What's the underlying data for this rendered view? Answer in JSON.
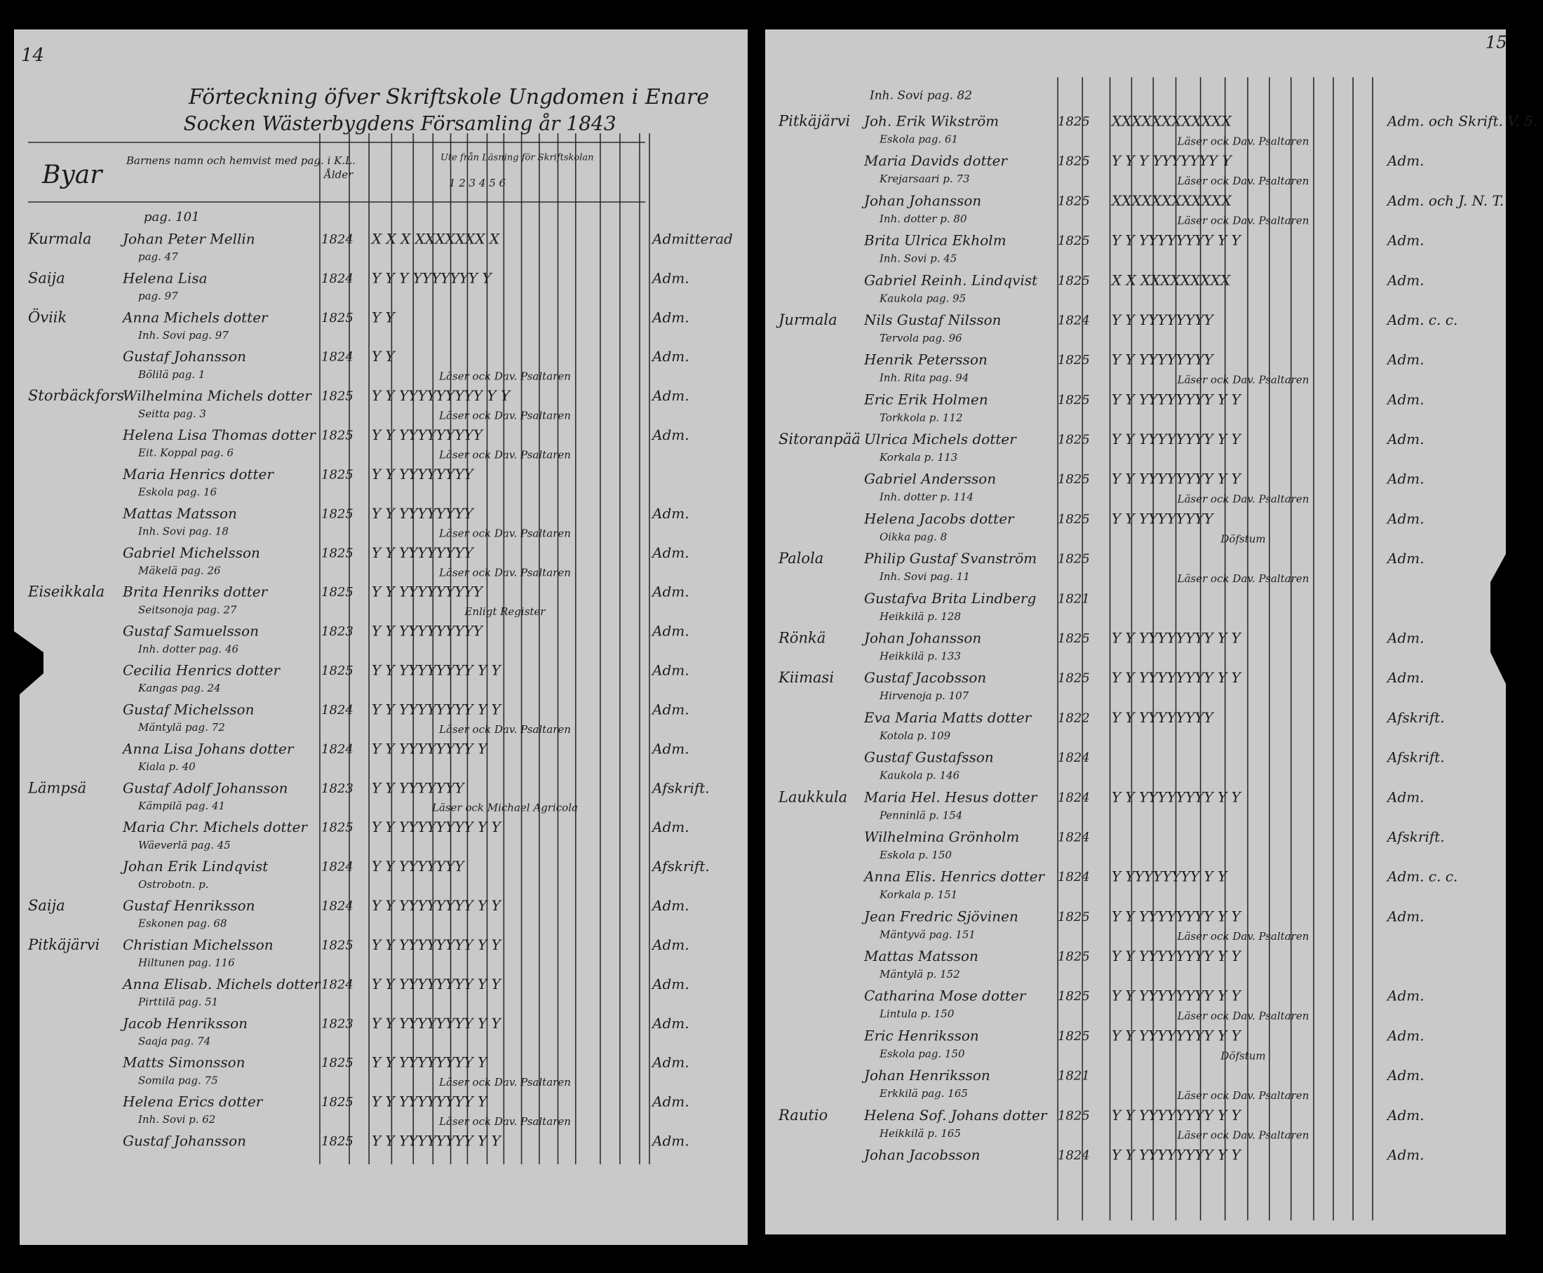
{
  "left_page": {
    "page_number": "14",
    "title": [
      "Förteckning öfver Skriftskole Ungdomen i Enare",
      "Socken Wästerbygdens Församling år 1843"
    ],
    "header": {
      "village": "Byar",
      "name": "Barnens namn och hemvist med pag. i K.L.",
      "age": "Ålder",
      "reading": "Ute från Läsning för Skriftskolan",
      "columns": "1 2 3 4 5 6"
    },
    "top_ref": "pag. 101",
    "rows": [
      {
        "village": "Kurmala",
        "name": "Johan Peter Mellin",
        "ref": "pag. 47",
        "year": "1824",
        "marks": "X X X XXXXXXX X",
        "status": "Admitterad"
      },
      {
        "village": "Saija",
        "name": "Helena Lisa",
        "ref": "pag. 97",
        "year": "1824",
        "marks": "Y Y Y YYYYYYY Y",
        "status": "Adm."
      },
      {
        "village": "Öviik",
        "name": "Anna Michels dotter",
        "ref": "Inh. Sovi pag. 97",
        "year": "1825",
        "marks": "Y Y",
        "status": "Adm."
      },
      {
        "village": "",
        "name": "Gustaf Johansson",
        "ref": "Bölilä pag. 1",
        "year": "1824",
        "marks": "Y Y",
        "status": "Adm.",
        "note": "Läser ock Dav. Psaltaren"
      },
      {
        "village": "Storbäckfors",
        "name": "Wilhelmina Michels dotter",
        "ref": "Seitta pag. 3",
        "year": "1825",
        "marks": "Y Y YYYYYYYYY Y Y",
        "status": "Adm.",
        "note": "Läser ock Dav. Psaltaren"
      },
      {
        "village": "",
        "name": "Helena Lisa Thomas dotter",
        "ref": "Eit. Koppal pag. 6",
        "year": "1825",
        "marks": "Y Y YYYYYYYYY",
        "status": "Adm.",
        "note": "Läser ock Dav. Psaltaren"
      },
      {
        "village": "",
        "name": "Maria Henrics dotter",
        "ref": "Eskola pag. 16",
        "year": "1825",
        "marks": "Y Y YYYYYYYY",
        "status": ""
      },
      {
        "village": "",
        "name": "Mattas Matsson",
        "ref": "Inh. Sovi pag. 18",
        "year": "1825",
        "marks": "Y Y YYYYYYYY",
        "status": "Adm.",
        "note": "Läser ock Dav. Psaltaren"
      },
      {
        "village": "",
        "name": "Gabriel Michelsson",
        "ref": "Mäkelä pag. 26",
        "year": "1825",
        "marks": "Y Y YYYYYYYY",
        "status": "Adm.",
        "note": "Läser ock Dav. Psaltaren"
      },
      {
        "village": "Eiseikkala",
        "name": "Brita Henriks dotter",
        "ref": "Seitsonoja pag. 27",
        "year": "1825",
        "marks": "Y Y YYYYYYYYY",
        "status": "Adm.",
        "note": "Enligt Register"
      },
      {
        "village": "",
        "name": "Gustaf Samuelsson",
        "ref": "Inh. dotter pag. 46",
        "year": "1823",
        "marks": "Y Y YYYYYYYYY",
        "status": "Adm."
      },
      {
        "village": "",
        "name": "Cecilia Henrics dotter",
        "ref": "Kangas pag. 24",
        "year": "1825",
        "marks": "Y Y YYYYYYYY Y Y",
        "status": "Adm."
      },
      {
        "village": "",
        "name": "Gustaf Michelsson",
        "ref": "Mäntylä pag. 72",
        "year": "1824",
        "marks": "Y Y YYYYYYYY Y Y",
        "status": "Adm.",
        "note": "Läser ock Dav. Psaltaren"
      },
      {
        "village": "",
        "name": "Anna Lisa Johans dotter",
        "ref": "Kiala p. 40",
        "year": "1824",
        "marks": "Y Y YYYYYYYY Y",
        "status": "Adm."
      },
      {
        "village": "Lämpsä",
        "name": "Gustaf Adolf Johansson",
        "ref": "Kämpilä pag. 41",
        "year": "1823",
        "marks": "Y Y YYYYYYY",
        "status": "Afskrift.",
        "note": "Läser ock Michael Agricola"
      },
      {
        "village": "",
        "name": "Maria Chr. Michels dotter",
        "ref": "Wäeverlä pag. 45",
        "year": "1825",
        "marks": "Y Y YYYYYYYY Y Y",
        "status": "Adm."
      },
      {
        "village": "",
        "name": "Johan Erik Lindqvist",
        "ref": "Ostrobotn. p.",
        "year": "1824",
        "marks": "Y Y YYYYYYY",
        "status": "Afskrift."
      },
      {
        "village": "Saija",
        "name": "Gustaf Henriksson",
        "ref": "Eskonen pag. 68",
        "year": "1824",
        "marks": "Y Y YYYYYYYY Y Y",
        "status": "Adm."
      },
      {
        "village": "Pitkäjärvi",
        "name": "Christian Michelsson",
        "ref": "Hiltunen pag. 116",
        "year": "1825",
        "marks": "Y Y YYYYYYYY Y Y",
        "status": "Adm."
      },
      {
        "village": "",
        "name": "Anna Elisab. Michels dotter",
        "ref": "Pirttilä pag. 51",
        "year": "1824",
        "marks": "Y Y YYYYYYYY Y Y",
        "status": "Adm."
      },
      {
        "village": "",
        "name": "Jacob Henriksson",
        "ref": "Saaja pag. 74",
        "year": "1823",
        "marks": "Y Y YYYYYYYY Y Y",
        "status": "Adm."
      },
      {
        "village": "",
        "name": "Matts Simonsson",
        "ref": "Somila pag. 75",
        "year": "1825",
        "marks": "Y Y YYYYYYYY Y",
        "status": "Adm.",
        "note": "Läser ock Dav. Psaltaren"
      },
      {
        "village": "",
        "name": "Helena Erics dotter",
        "ref": "Inh. Sovi p. 62",
        "year": "1825",
        "marks": "Y Y YYYYYYYY Y",
        "status": "Adm.",
        "note": "Läser ock Dav. Psaltaren"
      },
      {
        "village": "",
        "name": "Gustaf Johansson",
        "ref": "",
        "year": "1825",
        "marks": "Y Y YYYYYYYY Y Y",
        "status": "Adm."
      }
    ]
  },
  "right_page": {
    "page_number": "15",
    "top_ref": "Inh. Sovi pag. 82",
    "rows": [
      {
        "village": "Pitkäjärvi",
        "name": "Joh. Erik Wikström",
        "ref": "Eskola pag. 61",
        "year": "1825",
        "marks": "XXXXXXXXXXXX",
        "status": "Adm. och Skrift. V. 5.",
        "note": "Läser ock Dav. Psaltaren"
      },
      {
        "village": "",
        "name": "Maria Davids dotter",
        "ref": "Krejarsaari p. 73",
        "year": "1825",
        "marks": "Y Y Y YYYYYYY Y",
        "status": "Adm.",
        "note": "Läser ock Dav. Psaltaren"
      },
      {
        "village": "",
        "name": "Johan Johansson",
        "ref": "Inh. dotter p. 80",
        "year": "1825",
        "marks": "XXXXXXXXXXXX",
        "status": "Adm. och J. N. T.",
        "note": "Läser ock Dav. Psaltaren"
      },
      {
        "village": "",
        "name": "Brita Ulrica Ekholm",
        "ref": "Inh. Sovi p. 45",
        "year": "1825",
        "marks": "Y Y YYYYYYYY Y Y",
        "status": "Adm."
      },
      {
        "village": "",
        "name": "Gabriel Reinh. Lindqvist",
        "ref": "Kaukola pag. 95",
        "year": "1825",
        "marks": "X X XXXXXXXXX",
        "status": "Adm."
      },
      {
        "village": "Jurmala",
        "name": "Nils Gustaf Nilsson",
        "ref": "Tervola pag. 96",
        "year": "1824",
        "marks": "Y Y YYYYYYYY",
        "status": "Adm. c. c."
      },
      {
        "village": "",
        "name": "Henrik Petersson",
        "ref": "Inh. Rita pag. 94",
        "year": "1825",
        "marks": "Y Y YYYYYYYY",
        "status": "Adm.",
        "note": "Läser ock Dav. Psaltaren"
      },
      {
        "village": "",
        "name": "Eric Erik Holmen",
        "ref": "Torkkola p. 112",
        "year": "1825",
        "marks": "Y Y YYYYYYYY Y Y",
        "status": "Adm."
      },
      {
        "village": "Sitoranpää",
        "name": "Ulrica Michels dotter",
        "ref": "Korkala p. 113",
        "year": "1825",
        "marks": "Y Y YYYYYYYY Y Y",
        "status": "Adm."
      },
      {
        "village": "",
        "name": "Gabriel Andersson",
        "ref": "Inh. dotter p. 114",
        "year": "1825",
        "marks": "Y Y YYYYYYYY Y Y",
        "status": "Adm.",
        "note": "Läser ock Dav. Psaltaren"
      },
      {
        "village": "",
        "name": "Helena Jacobs dotter",
        "ref": "Oikka pag. 8",
        "year": "1825",
        "marks": "Y Y YYYYYYYY",
        "status": "Adm.",
        "note": "Döfstum"
      },
      {
        "village": "Palola",
        "name": "Philip Gustaf Svanström",
        "ref": "Inh. Sovi pag. 11",
        "year": "1825",
        "marks": "",
        "status": "Adm.",
        "note": "Läser ock Dav. Psaltaren"
      },
      {
        "village": "",
        "name": "Gustafva Brita Lindberg",
        "ref": "Heikkilä p. 128",
        "year": "1821",
        "marks": "",
        "status": ""
      },
      {
        "village": "Rönkä",
        "name": "Johan Johansson",
        "ref": "Heikkilä p. 133",
        "year": "1825",
        "marks": "Y Y YYYYYYYY Y Y",
        "status": "Adm."
      },
      {
        "village": "Kiimasi",
        "name": "Gustaf Jacobsson",
        "ref": "Hirvenoja p. 107",
        "year": "1825",
        "marks": "Y Y YYYYYYYY Y Y",
        "status": "Adm."
      },
      {
        "village": "",
        "name": "Eva Maria Matts dotter",
        "ref": "Kotola p. 109",
        "year": "1822",
        "marks": "Y Y YYYYYYYY",
        "status": "Afskrift."
      },
      {
        "village": "",
        "name": "Gustaf Gustafsson",
        "ref": "Kaukola p. 146",
        "year": "1824",
        "marks": "",
        "status": "Afskrift."
      },
      {
        "village": "Laukkula",
        "name": "Maria Hel. Hesus dotter",
        "ref": "Penninlä p. 154",
        "year": "1824",
        "marks": "Y Y YYYYYYYY Y Y",
        "status": "Adm."
      },
      {
        "village": "",
        "name": "Wilhelmina Grönholm",
        "ref": "Eskola p. 150",
        "year": "1824",
        "marks": "",
        "status": "Afskrift."
      },
      {
        "village": "",
        "name": "Anna Elis. Henrics dotter",
        "ref": "Korkala p. 151",
        "year": "1824",
        "marks": "Y YYYYYYYY Y Y",
        "status": "Adm. c. c."
      },
      {
        "village": "",
        "name": "Jean Fredric Sjövinen",
        "ref": "Mäntyvä pag. 151",
        "year": "1825",
        "marks": "Y Y YYYYYYYY Y Y",
        "status": "Adm.",
        "note": "Läser ock Dav. Psaltaren"
      },
      {
        "village": "",
        "name": "Mattas Matsson",
        "ref": "Mäntylä p. 152",
        "year": "1825",
        "marks": "Y Y YYYYYYYY Y Y",
        "status": ""
      },
      {
        "village": "",
        "name": "Catharina Mose dotter",
        "ref": "Lintula p. 150",
        "year": "1825",
        "marks": "Y Y YYYYYYYY Y Y",
        "status": "Adm.",
        "note": "Läser ock Dav. Psaltaren"
      },
      {
        "village": "",
        "name": "Eric Henriksson",
        "ref": "Eskola pag. 150",
        "year": "1825",
        "marks": "Y Y YYYYYYYY Y Y",
        "status": "Adm.",
        "note": "Döfstum"
      },
      {
        "village": "",
        "name": "Johan Henriksson",
        "ref": "Erkkilä pag. 165",
        "year": "1821",
        "marks": "",
        "status": "Adm.",
        "note": "Läser ock Dav. Psaltaren"
      },
      {
        "village": "Rautio",
        "name": "Helena Sof. Johans dotter",
        "ref": "Heikkilä p. 165",
        "year": "1825",
        "marks": "Y Y YYYYYYYY Y Y",
        "status": "Adm.",
        "note": "Läser ock Dav. Psaltaren"
      },
      {
        "village": "",
        "name": "Johan Jacobsson",
        "ref": "",
        "year": "1824",
        "marks": "Y Y YYYYYYYY Y Y",
        "status": "Adm."
      }
    ]
  }
}
